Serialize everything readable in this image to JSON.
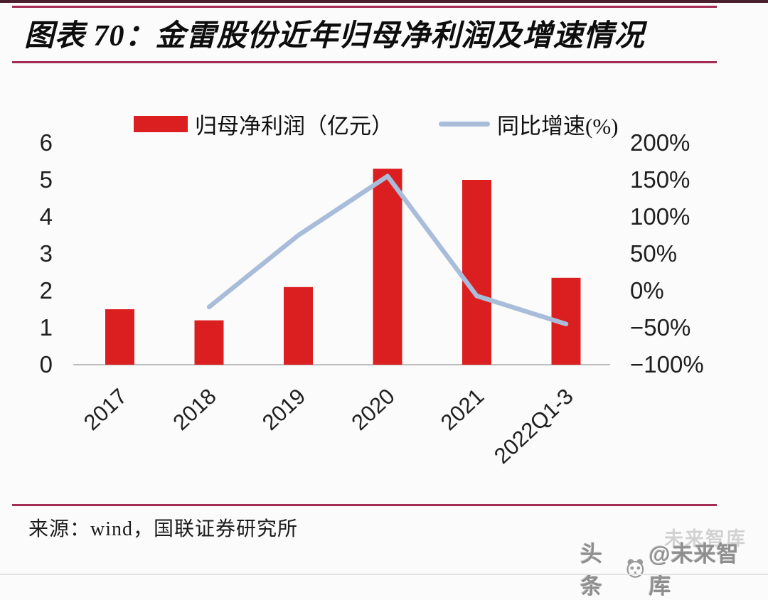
{
  "header": {
    "title": "图表 70：金雷股份近年归母净利润及增速情况"
  },
  "footer": {
    "source": "来源：wind，国联证券研究所",
    "watermark": {
      "ghost": "未来智库",
      "prefix": "头条",
      "handle": "@未来智库",
      "logo": "panda-icon"
    }
  },
  "colors": {
    "bar": "#db1f21",
    "line": "#a9bddb",
    "rule": "#a32c52",
    "top_border": "#4a1f2e",
    "axis_line": "#bdbdbd",
    "tick_text": "#1f1f1f",
    "watermark_text": "#8f8f8f"
  },
  "chart_data": {
    "type": "bar+line",
    "title": "金雷股份近年归母净利润及增速情况",
    "categories": [
      "2017",
      "2018",
      "2019",
      "2020",
      "2021",
      "2022Q1-3"
    ],
    "series": [
      {
        "name": "归母净利润（亿元）",
        "type": "bar",
        "axis": "left",
        "values": [
          1.5,
          1.2,
          2.1,
          5.3,
          5.0,
          2.35
        ]
      },
      {
        "name": "同比增速(%)",
        "type": "line",
        "axis": "right",
        "values": [
          null,
          -22,
          75,
          155,
          -7,
          -45
        ]
      }
    ],
    "left_axis": {
      "min": 0,
      "max": 6,
      "ticks": [
        0,
        1,
        2,
        3,
        4,
        5,
        6
      ]
    },
    "right_axis": {
      "min": -100,
      "max": 200,
      "ticks": [
        200,
        150,
        100,
        50,
        0,
        -50,
        -100
      ],
      "suffix": "%"
    },
    "legend_position": "top",
    "gridlines": false
  }
}
